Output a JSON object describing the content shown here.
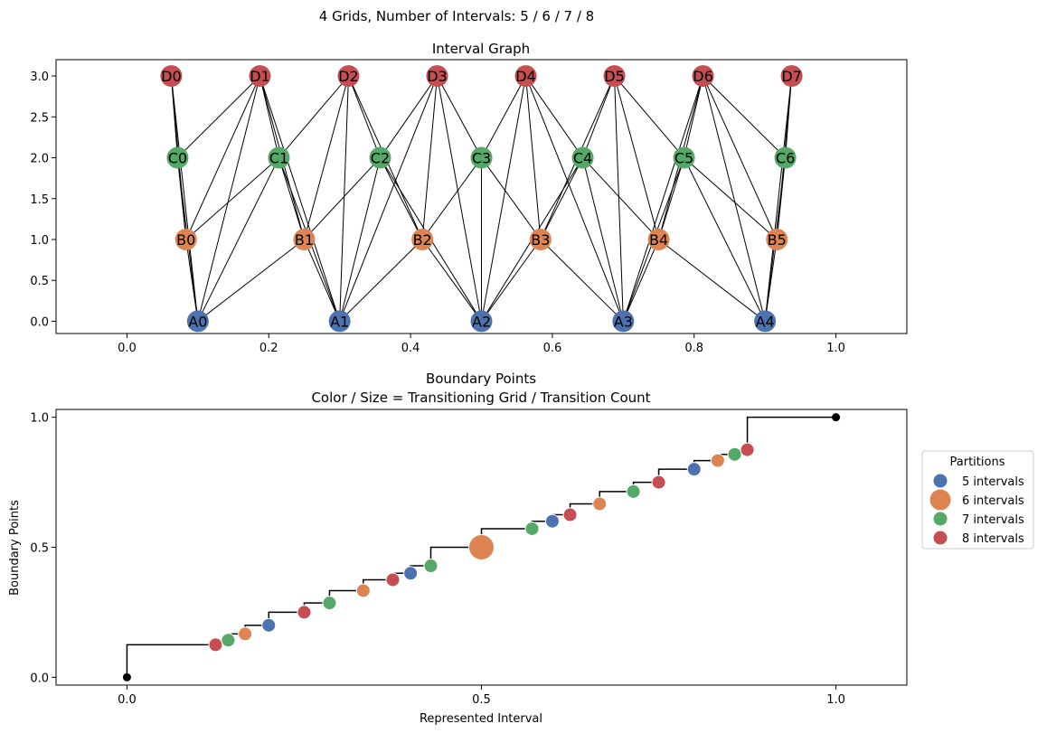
{
  "figure": {
    "suptitle": "4 Grids, Number of Intervals: 5 / 6 / 7 / 8"
  },
  "colors": {
    "A": "#4c72b0",
    "B": "#dd8452",
    "C": "#55a868",
    "D": "#c44e52"
  },
  "chart_data": [
    {
      "type": "network",
      "title": "Interval Graph",
      "xlim": [
        -0.1,
        1.1
      ],
      "ylim": [
        -0.15,
        3.2
      ],
      "xticks": [
        "0.0",
        "0.2",
        "0.4",
        "0.6",
        "0.8",
        "1.0"
      ],
      "xtick_values": [
        0,
        0.2,
        0.4,
        0.6,
        0.8,
        1.0
      ],
      "yticks": [
        "0.0",
        "0.5",
        "1.0",
        "1.5",
        "2.0",
        "2.5",
        "3.0"
      ],
      "ytick_values": [
        0,
        0.5,
        1.0,
        1.5,
        2.0,
        2.5,
        3.0
      ],
      "grids": [
        {
          "prefix": "A",
          "level": 0,
          "intervals": 5
        },
        {
          "prefix": "B",
          "level": 1,
          "intervals": 6
        },
        {
          "prefix": "C",
          "level": 2,
          "intervals": 7
        },
        {
          "prefix": "D",
          "level": 3,
          "intervals": 8
        }
      ],
      "edge_rule": "nodes on different levels are connected when their intervals overlap"
    },
    {
      "type": "scatter",
      "title": "Boundary Points",
      "subtitle": "Color / Size = Transitioning Grid / Transition Count",
      "xlabel": "Represented Interval",
      "ylabel": "Boundary Points",
      "xlim": [
        -0.1,
        1.1
      ],
      "ylim": [
        -0.03,
        1.03
      ],
      "xticks": [
        "0.0",
        "0.5",
        "1.0"
      ],
      "xtick_values": [
        0,
        0.5,
        1.0
      ],
      "yticks": [
        "0.0",
        "0.5",
        "1.0"
      ],
      "ytick_values": [
        0,
        0.5,
        1.0
      ],
      "legend": {
        "title": "Partitions",
        "position": "outside-right",
        "entries": [
          {
            "label": "5 intervals",
            "color": "#4c72b0",
            "size": "small"
          },
          {
            "label": "6 intervals",
            "color": "#dd8452",
            "size": "large"
          },
          {
            "label": "7 intervals",
            "color": "#55a868",
            "size": "small"
          },
          {
            "label": "8 intervals",
            "color": "#c44e52",
            "size": "small"
          }
        ]
      },
      "grid_intervals": [
        5,
        6,
        7,
        8
      ],
      "step_line": true
    }
  ]
}
